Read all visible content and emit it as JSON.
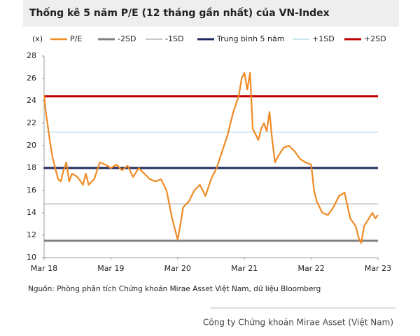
{
  "header": {
    "title": "Thống kê 5 năm P/E (12 tháng gần nhất) của VN-Index"
  },
  "chart_data": {
    "type": "line",
    "y_label": "(x)",
    "x": [
      0,
      0.3,
      0.6,
      1,
      1.5,
      2,
      2.5,
      3,
      3.5,
      4,
      4.5,
      5,
      6,
      7,
      7.5,
      8,
      9,
      10,
      11,
      12,
      13,
      14,
      15,
      16,
      17,
      18,
      19,
      20,
      21,
      22,
      23,
      24,
      24.5,
      25,
      26,
      27,
      28,
      29,
      30,
      31,
      32,
      33,
      33.5,
      34,
      35,
      35.5,
      36,
      36.5,
      37,
      37.5,
      38,
      38.5,
      39,
      39.5,
      40,
      40.5,
      41,
      41.5,
      42,
      43,
      44,
      45,
      46,
      47,
      48,
      48.5,
      49,
      50,
      51,
      52,
      53,
      54,
      55,
      56,
      56.5,
      57,
      57.5,
      58,
      59,
      59.5,
      60
    ],
    "series": [
      {
        "name": "P/E",
        "color": "#f08a24",
        "values": [
          24.5,
          23,
          22,
          20.5,
          19,
          18,
          17,
          16.8,
          17.8,
          18.5,
          16.8,
          17.5,
          17.2,
          16.5,
          17.5,
          16.5,
          17,
          18.5,
          18.3,
          18,
          18.3,
          17.8,
          18.2,
          17.2,
          18,
          17.5,
          17,
          16.8,
          17,
          16,
          13.5,
          11.6,
          13,
          14.5,
          15,
          16,
          16.5,
          15.5,
          17,
          18,
          19.5,
          21,
          22,
          23,
          24.5,
          26,
          26.5,
          25,
          26.5,
          21.5,
          21,
          20.5,
          21.5,
          22,
          21.3,
          23,
          20.5,
          18.5,
          19,
          19.8,
          20,
          19.5,
          18.8,
          18.5,
          18.3,
          16,
          15,
          14,
          13.8,
          14.5,
          15.5,
          15.8,
          13.5,
          12.8,
          11.8,
          11.3,
          12.8,
          13.2,
          14,
          13.5,
          13.8
        ]
      }
    ],
    "reference_lines": [
      {
        "name": "-2SD",
        "color": "#808080",
        "value": 11.5,
        "width": 3
      },
      {
        "name": "-1SD",
        "color": "#a6a6a6",
        "value": 14.8,
        "width": 1.2
      },
      {
        "name": "Trung bình 5 năm",
        "color": "#1f2a5c",
        "value": 18.0,
        "width": 3
      },
      {
        "name": "+1SD",
        "color": "#add8e6",
        "value": 21.2,
        "width": 1.2
      },
      {
        "name": "+2SD",
        "color": "#c00000",
        "value": 24.4,
        "width": 3
      }
    ],
    "xlim": [
      0,
      60
    ],
    "xticks": [
      {
        "value": 0,
        "label": "Mar 18"
      },
      {
        "value": 12,
        "label": "Mar 19"
      },
      {
        "value": 24,
        "label": "Mar 20"
      },
      {
        "value": 36,
        "label": "Mar 21"
      },
      {
        "value": 48,
        "label": "Mar 22"
      },
      {
        "value": 60,
        "label": "Mar 23"
      }
    ],
    "ylim": [
      10,
      28
    ],
    "yticks": [
      10,
      12,
      14,
      16,
      18,
      20,
      22,
      24,
      26,
      28
    ]
  },
  "footer": {
    "source": "Nguồn: Phòng phân tích Chứng khoán Mirae Asset Việt Nam, dữ liệu Bloomberg",
    "company": "Công ty Chứng khoán Mirae Asset (Việt Nam)"
  }
}
